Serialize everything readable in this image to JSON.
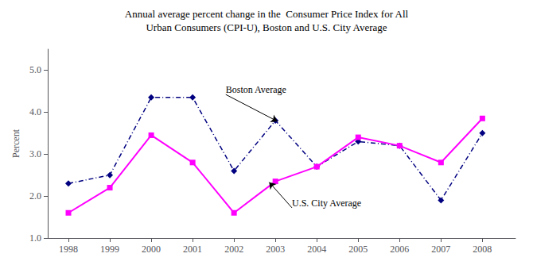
{
  "chart_data": {
    "type": "line",
    "title": "Annual average percent change in the  Consumer Price Index for All",
    "subtitle": "Urban Consumers (CPI-U), Boston and U.S. City Average",
    "ylabel": "Percent",
    "x": [
      1998,
      1999,
      2000,
      2001,
      2002,
      2003,
      2004,
      2005,
      2006,
      2007,
      2008
    ],
    "xlim": [
      1997.5,
      2008.8
    ],
    "xticks": [
      1998,
      1999,
      2000,
      2001,
      2002,
      2003,
      2004,
      2005,
      2006,
      2007,
      2008
    ],
    "ylim": [
      1.0,
      5.5
    ],
    "yticks": [
      {
        "value": 1.0,
        "label": "1.0"
      },
      {
        "value": 2.0,
        "label": "2.0"
      },
      {
        "value": 3.0,
        "label": "3.0"
      },
      {
        "value": 4.0,
        "label": "4.0"
      },
      {
        "value": 5.0,
        "label": "5.0"
      }
    ],
    "grid": false,
    "series": [
      {
        "name": "Boston Average",
        "color": "#000080",
        "marker": "diamond",
        "line_style": "dashdot",
        "values": [
          2.3,
          2.5,
          4.35,
          4.35,
          2.6,
          3.8,
          2.7,
          3.3,
          3.2,
          1.9,
          3.5
        ]
      },
      {
        "name": "U.S. City Average",
        "color": "#ff00ff",
        "marker": "square",
        "line_style": "solid",
        "values": [
          1.6,
          2.2,
          3.45,
          2.8,
          1.6,
          2.35,
          2.7,
          3.4,
          3.2,
          2.8,
          3.85
        ]
      }
    ],
    "annotations": [
      {
        "text": "Boston Average",
        "xy": [
          2003.05,
          3.78
        ],
        "xytext": [
          2001.8,
          4.42
        ]
      },
      {
        "text": "U.S. City Average",
        "xy": [
          2002.85,
          2.33
        ],
        "xytext": [
          2003.4,
          1.72
        ]
      }
    ]
  }
}
